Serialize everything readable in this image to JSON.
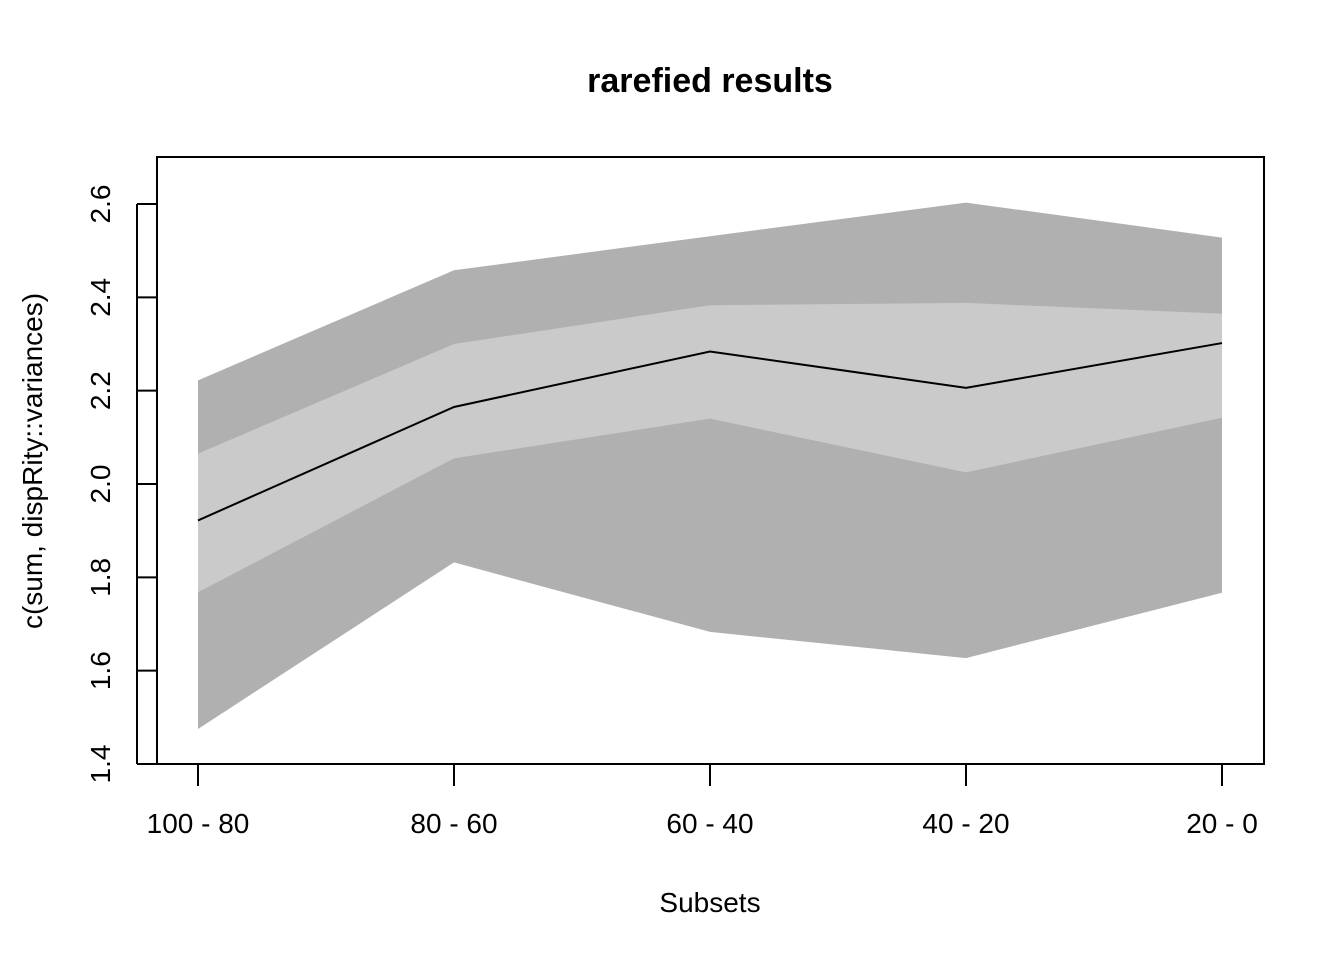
{
  "chart_data": {
    "type": "area",
    "title": "rarefied results",
    "xlabel": "Subsets",
    "ylabel": "c(sum, dispRity::variances)",
    "categories": [
      "100 - 80",
      "80 - 60",
      "60 - 40",
      "40 - 20",
      "20 - 0"
    ],
    "yticks": [
      "1.4",
      "1.6",
      "1.8",
      "2.0",
      "2.2",
      "2.4",
      "2.6"
    ],
    "ylim": [
      1.4,
      2.7
    ],
    "grid": false,
    "series": [
      {
        "values": [
          1.922,
          2.165,
          2.284,
          2.206,
          2.302
        ]
      }
    ],
    "bands": [
      {
        "lower": [
          1.475,
          1.832,
          1.683,
          1.627,
          1.767
        ],
        "upper": [
          2.222,
          2.458,
          2.531,
          2.603,
          2.528
        ],
        "color": "#b0b0b0"
      },
      {
        "lower": [
          1.768,
          2.055,
          2.14,
          2.025,
          2.142
        ],
        "upper": [
          2.065,
          2.3,
          2.383,
          2.388,
          2.365
        ],
        "color": "#cacaca"
      }
    ],
    "line_color": "#000000"
  }
}
